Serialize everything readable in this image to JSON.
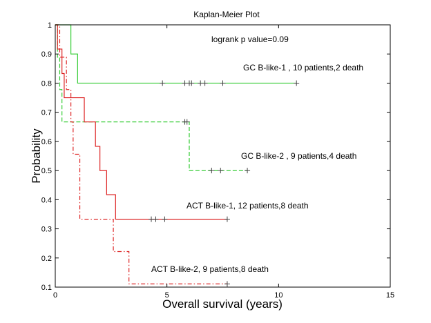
{
  "chart_data": {
    "type": "line",
    "title": "Kaplan-Meier Plot",
    "xlabel": "Overall survival (years)",
    "ylabel": "Probability",
    "xlim": [
      0,
      15
    ],
    "ylim": [
      0.1,
      1
    ],
    "xticks": [
      "0",
      "5",
      "10",
      "15"
    ],
    "yticks": [
      "0.1",
      "0.2",
      "0.3",
      "0.4",
      "0.5",
      "0.6",
      "0.7",
      "0.8",
      "0.9",
      "1"
    ],
    "grid": false,
    "annotations": [
      "logrank p value=0.09",
      "GC B-like-1 , 10 patients,2 death",
      "GC B-like-2 , 9 patients,4 death",
      "ACT B-like-1, 12 patients,8 death",
      "ACT B-like-2, 9 patients,8 death"
    ],
    "series": [
      {
        "color": "#33cc33",
        "dash": "solid",
        "steps": [
          [
            0,
            1.0
          ],
          [
            0.7,
            0.9
          ],
          [
            1.0,
            0.8
          ],
          [
            10.8,
            0.8
          ]
        ],
        "censored": [
          [
            4.8,
            0.8
          ],
          [
            5.8,
            0.8
          ],
          [
            6.0,
            0.8
          ],
          [
            6.1,
            0.8
          ],
          [
            6.5,
            0.8
          ],
          [
            6.7,
            0.8
          ],
          [
            7.5,
            0.8
          ],
          [
            10.8,
            0.8
          ]
        ]
      },
      {
        "color": "#33cc33",
        "dash": "dashed",
        "steps": [
          [
            0,
            1.0
          ],
          [
            0.1,
            0.889
          ],
          [
            0.2,
            0.778
          ],
          [
            0.3,
            0.667
          ],
          [
            6.0,
            0.5
          ],
          [
            8.6,
            0.5
          ]
        ],
        "censored": [
          [
            5.8,
            0.667
          ],
          [
            5.9,
            0.667
          ],
          [
            7.0,
            0.5
          ],
          [
            7.4,
            0.5
          ],
          [
            8.6,
            0.5
          ]
        ]
      },
      {
        "color": "#dd2222",
        "dash": "solid",
        "steps": [
          [
            0,
            1.0
          ],
          [
            0.1,
            0.917
          ],
          [
            0.3,
            0.833
          ],
          [
            0.4,
            0.75
          ],
          [
            1.3,
            0.667
          ],
          [
            1.8,
            0.583
          ],
          [
            2.0,
            0.5
          ],
          [
            2.3,
            0.417
          ],
          [
            2.7,
            0.333
          ],
          [
            7.7,
            0.333
          ]
        ],
        "censored": [
          [
            4.3,
            0.333
          ],
          [
            4.5,
            0.333
          ],
          [
            4.9,
            0.333
          ],
          [
            7.7,
            0.333
          ]
        ]
      },
      {
        "color": "#dd2222",
        "dash": "dashdot",
        "steps": [
          [
            0,
            1.0
          ],
          [
            0.2,
            0.889
          ],
          [
            0.5,
            0.778
          ],
          [
            0.7,
            0.667
          ],
          [
            0.8,
            0.556
          ],
          [
            1.1,
            0.444
          ],
          [
            1.1,
            0.333
          ],
          [
            2.6,
            0.222
          ],
          [
            3.3,
            0.111
          ],
          [
            7.7,
            0.111
          ]
        ],
        "censored": [
          [
            7.7,
            0.111
          ]
        ]
      }
    ]
  }
}
